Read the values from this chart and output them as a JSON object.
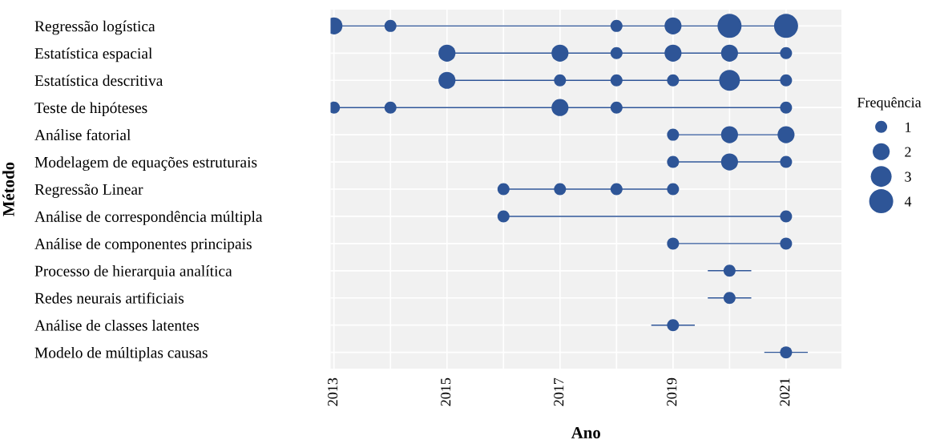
{
  "chart_data": {
    "type": "bubble",
    "orientation": "horizontal",
    "xlabel": "Ano",
    "ylabel": "Método",
    "legend_title": "Frequência",
    "size_legend": [
      1,
      2,
      3,
      4
    ],
    "color": "#2e5597",
    "line_style": "solid",
    "marker": "circle",
    "grid": true,
    "categories": [
      "Regressão logística",
      "Estatística espacial",
      "Estatística descritiva",
      "Teste de hipóteses",
      "Análise fatorial",
      "Modelagem de equações estruturais",
      "Regressão Linear",
      "Análise de correspondência múltipla",
      "Análise de componentes principais",
      "Processo de hierarquia analítica",
      "Redes neurais artificiais",
      "Análise de classes latentes",
      "Modelo de múltiplas causas"
    ],
    "xlim": [
      2012.94,
      2021.98
    ],
    "xticks": [
      2013,
      {
        "value": 2014,
        "label": null
      },
      2015,
      {
        "value": 2016,
        "label": null
      },
      2017,
      {
        "value": 2018,
        "label": null
      },
      2019,
      {
        "value": 2020,
        "label": null
      },
      2021
    ],
    "series": [
      {
        "x": [
          "Regressão logística",
          "Regressão logística",
          "Regressão logística",
          "Regressão logística",
          "Regressão logística",
          "Regressão logística"
        ],
        "values": [
          2013,
          2014,
          2018,
          2019,
          2020,
          2021
        ],
        "sizes": [
          2,
          1,
          1,
          2,
          4,
          4
        ]
      },
      {
        "x": [
          "Estatística espacial",
          "Estatística espacial",
          "Estatística espacial",
          "Estatística espacial",
          "Estatística espacial",
          "Estatística espacial"
        ],
        "values": [
          2015,
          2017,
          2018,
          2019,
          2020,
          2021
        ],
        "sizes": [
          2,
          2,
          1,
          2,
          2,
          1
        ]
      },
      {
        "x": [
          "Estatística descritiva",
          "Estatística descritiva",
          "Estatística descritiva",
          "Estatística descritiva",
          "Estatística descritiva",
          "Estatística descritiva"
        ],
        "values": [
          2015,
          2017,
          2018,
          2019,
          2020,
          2021
        ],
        "sizes": [
          2,
          1,
          1,
          1,
          3,
          1
        ]
      },
      {
        "x": [
          "Teste de hipóteses",
          "Teste de hipóteses",
          "Teste de hipóteses",
          "Teste de hipóteses",
          "Teste de hipóteses"
        ],
        "values": [
          2013,
          2014,
          2017,
          2018,
          2021
        ],
        "sizes": [
          1,
          1,
          2,
          1,
          1
        ]
      },
      {
        "x": [
          "Análise fatorial",
          "Análise fatorial",
          "Análise fatorial"
        ],
        "values": [
          2019,
          2020,
          2021
        ],
        "sizes": [
          1,
          2,
          2
        ]
      },
      {
        "x": [
          "Modelagem de equações estruturais",
          "Modelagem de equações estruturais",
          "Modelagem de equações estruturais"
        ],
        "values": [
          2019,
          2020,
          2021
        ],
        "sizes": [
          1,
          2,
          1
        ]
      },
      {
        "x": [
          "Regressão Linear",
          "Regressão Linear",
          "Regressão Linear",
          "Regressão Linear"
        ],
        "values": [
          2016,
          2017,
          2018,
          2019
        ],
        "sizes": [
          1,
          1,
          1,
          1
        ]
      },
      {
        "x": [
          "Análise de correspondência múltipla",
          "Análise de correspondência múltipla"
        ],
        "values": [
          2016,
          2021
        ],
        "sizes": [
          1,
          1
        ]
      },
      {
        "x": [
          "Análise de componentes principais",
          "Análise de componentes principais"
        ],
        "values": [
          2019,
          2021
        ],
        "sizes": [
          1,
          1
        ]
      },
      {
        "x": [
          "Processo de hierarquia analítica"
        ],
        "values": [
          2020
        ],
        "sizes": [
          1
        ],
        "errors": [
          0.375
        ]
      },
      {
        "x": [
          "Redes neurais artificiais"
        ],
        "values": [
          2020
        ],
        "sizes": [
          1
        ],
        "errors": [
          0.375
        ]
      },
      {
        "x": [
          "Análise de classes latentes"
        ],
        "values": [
          2019
        ],
        "sizes": [
          1
        ],
        "errors": [
          0.375
        ]
      },
      {
        "x": [
          "Modelo de múltiplas causas"
        ],
        "values": [
          2021
        ],
        "sizes": [
          1
        ],
        "errors": [
          0.375
        ]
      }
    ]
  }
}
